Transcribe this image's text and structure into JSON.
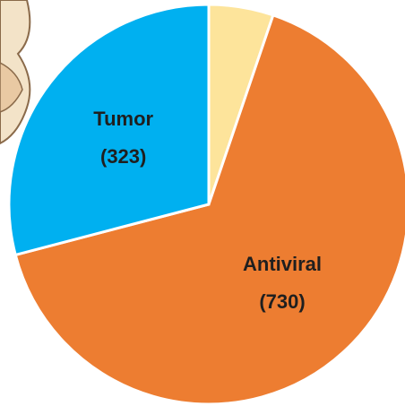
{
  "chart_data": {
    "type": "pie",
    "categories": [
      null,
      "Antiviral",
      "Tumor"
    ],
    "values": [
      58,
      730,
      323
    ],
    "value_labels": [
      null,
      "(730)",
      "(323)"
    ],
    "colors": [
      "#fde49b",
      "#ed7d31",
      "#00b0f0"
    ]
  }
}
